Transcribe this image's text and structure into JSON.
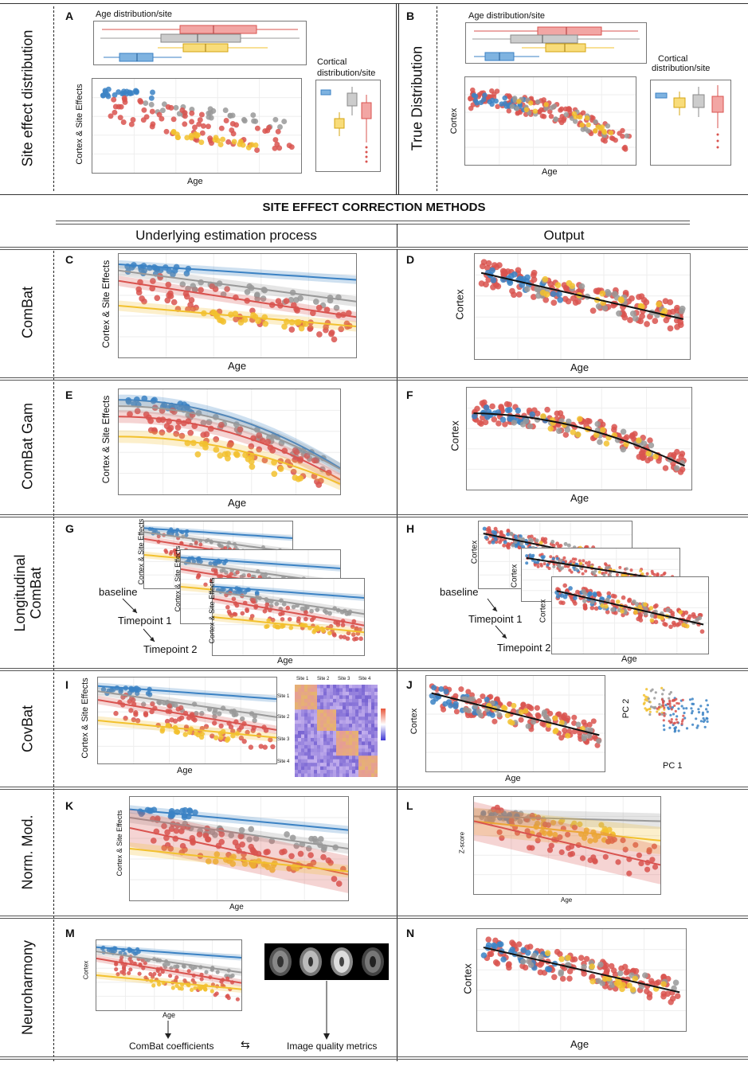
{
  "colors": {
    "blue": "#3b82c4",
    "red": "#d9534f",
    "gray": "#999999",
    "yellow": "#f2c12e",
    "line": "#222222"
  },
  "top": {
    "row_label_a": "Site effect distribution",
    "row_label_b": "True Distribution",
    "panel_a": "A",
    "panel_b": "B",
    "age_dist": "Age distribution/site",
    "cortical_dist_line1": "Cortical",
    "cortical_dist_line2": "distribution/site",
    "ylabel_a": "Cortex & Site Effects",
    "ylabel_b": "Cortex",
    "xlabel": "Age"
  },
  "section_title": "SITE EFFECT CORRECTION METHODS",
  "columns": {
    "left": "Underlying estimation process",
    "right": "Output"
  },
  "rows": [
    {
      "method": "ComBat",
      "left_panel": "C",
      "right_panel": "D",
      "left_ylabel": "Cortex & Site Effects",
      "right_ylabel": "Cortex",
      "xlabel": "Age"
    },
    {
      "method": "ComBat Gam",
      "left_panel": "E",
      "right_panel": "F",
      "left_ylabel": "Cortex & Site Effects",
      "right_ylabel": "Cortex",
      "xlabel": "Age"
    },
    {
      "method_line1": "Longitudinal",
      "method_line2": "ComBat",
      "left_panel": "G",
      "right_panel": "H",
      "left_ylabel": "Cortex & Site Effects",
      "right_ylabel": "Cortex",
      "xlabel": "Age",
      "baseline": "baseline",
      "tp1": "Timepoint 1",
      "tp2": "Timepoint 2"
    },
    {
      "method": "CovBat",
      "left_panel": "I",
      "right_panel": "J",
      "left_ylabel": "Cortex & Site Effects",
      "right_ylabel": "Cortex",
      "xlabel": "Age",
      "sites": [
        "Site 1",
        "Site 2",
        "Site 3",
        "Site 4"
      ],
      "pc1": "PC 1",
      "pc2": "PC 2"
    },
    {
      "method": "Norm. Mod.",
      "left_panel": "K",
      "right_panel": "L",
      "left_ylabel": "Cortex & Site Effects",
      "right_ylabel": "Z-score",
      "xlabel": "Age"
    },
    {
      "method": "Neuroharmony",
      "left_panel": "M",
      "right_panel": "N",
      "left_ylabel": "Cortex",
      "right_ylabel": "Cortex",
      "xlabel": "Age",
      "combat_coeffs": "ComBat coefficients",
      "iqm": "Image quality metrics"
    }
  ]
}
